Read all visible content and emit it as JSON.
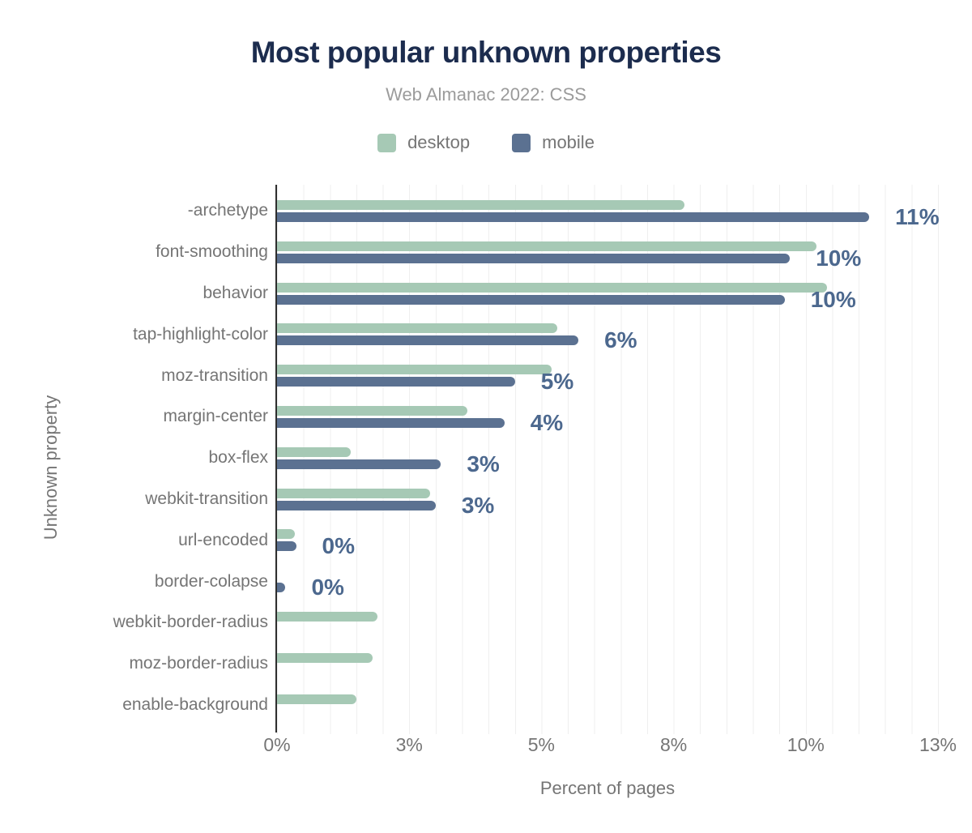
{
  "header": {
    "title": "Most popular unknown properties",
    "subtitle": "Web Almanac 2022: CSS"
  },
  "legend": [
    {
      "label": "desktop",
      "color": "#a6c9b5"
    },
    {
      "label": "mobile",
      "color": "#5b7191"
    }
  ],
  "colors": {
    "background": "#ffffff",
    "title": "#1c2c4e",
    "subtitle": "#9b9b9b",
    "axis_text": "#757575",
    "axis_line": "#2e2e2e",
    "gridline": "#efefef",
    "desktop": "#a6c9b5",
    "mobile": "#5b7191",
    "data_label": "#4c688e"
  },
  "chart_data": {
    "type": "bar",
    "orientation": "horizontal",
    "title": "Most popular unknown properties",
    "subtitle": "Web Almanac 2022: CSS",
    "xlabel": "Percent of pages",
    "ylabel": "Unknown property",
    "xlim": [
      0,
      12.5
    ],
    "grid": true,
    "grid_interval_pct": 0.5,
    "legend_position": "top",
    "x_ticks": [
      {
        "label": "0%",
        "value": 0
      },
      {
        "label": "3%",
        "value": 2.5
      },
      {
        "label": "5%",
        "value": 5
      },
      {
        "label": "8%",
        "value": 7.5
      },
      {
        "label": "10%",
        "value": 10
      },
      {
        "label": "13%",
        "value": 12.5
      }
    ],
    "categories": [
      "-archetype",
      "font-smoothing",
      "behavior",
      "tap-highlight-color",
      "moz-transition",
      "margin-center",
      "box-flex",
      "webkit-transition",
      "url-encoded",
      "border-colapse",
      "webkit-border-radius",
      "moz-border-radius",
      "enable-background"
    ],
    "series": [
      {
        "name": "desktop",
        "values": [
          7.7,
          10.2,
          10.4,
          5.3,
          5.2,
          3.6,
          1.4,
          2.9,
          0.34,
          null,
          1.9,
          1.8,
          1.5
        ]
      },
      {
        "name": "mobile",
        "values": [
          11.2,
          9.7,
          9.6,
          5.7,
          4.5,
          4.3,
          3.1,
          3.0,
          0.36,
          0.16,
          null,
          null,
          null
        ]
      }
    ],
    "data_labels": [
      "11%",
      "10%",
      "10%",
      "6%",
      "5%",
      "4%",
      "3%",
      "3%",
      "0%",
      "0%",
      null,
      null,
      null
    ],
    "data_label_series": "mobile"
  }
}
